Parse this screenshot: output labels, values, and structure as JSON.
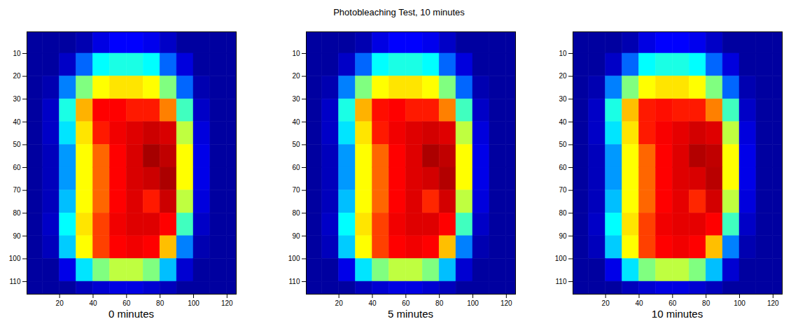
{
  "title": "Photobleaching Test, 10 minutes",
  "chart_data": [
    {
      "type": "heatmap",
      "xlabel": "0 minutes",
      "x": [
        5,
        15,
        25,
        35,
        45,
        55,
        65,
        75,
        85,
        95,
        105,
        115,
        125
      ],
      "y": [
        5,
        15,
        25,
        35,
        45,
        55,
        65,
        75,
        85,
        95,
        105,
        115
      ],
      "xlim": [
        0.5,
        125.5
      ],
      "ylim": [
        0.5,
        115.5
      ],
      "xticks": [
        20,
        40,
        60,
        80,
        100,
        120
      ],
      "yticks": [
        10,
        20,
        30,
        40,
        50,
        60,
        70,
        80,
        90,
        100,
        110
      ],
      "clim": [
        0,
        1
      ],
      "values": [
        [
          0.03,
          0.03,
          0.03,
          0.06,
          0.15,
          0.2,
          0.2,
          0.17,
          0.1,
          0.03,
          0.03,
          0.03,
          0.03
        ],
        [
          0.03,
          0.03,
          0.1,
          0.28,
          0.4,
          0.42,
          0.42,
          0.4,
          0.28,
          0.14,
          0.03,
          0.03,
          0.03
        ],
        [
          0.03,
          0.06,
          0.3,
          0.5,
          0.6,
          0.62,
          0.62,
          0.6,
          0.5,
          0.28,
          0.06,
          0.03,
          0.03
        ],
        [
          0.03,
          0.1,
          0.42,
          0.66,
          0.8,
          0.8,
          0.78,
          0.78,
          0.7,
          0.45,
          0.1,
          0.03,
          0.03
        ],
        [
          0.03,
          0.1,
          0.38,
          0.62,
          0.78,
          0.82,
          0.85,
          0.88,
          0.86,
          0.55,
          0.14,
          0.03,
          0.03
        ],
        [
          0.03,
          0.08,
          0.32,
          0.6,
          0.72,
          0.8,
          0.86,
          0.94,
          0.9,
          0.6,
          0.16,
          0.03,
          0.03
        ],
        [
          0.03,
          0.08,
          0.32,
          0.6,
          0.72,
          0.8,
          0.86,
          0.88,
          0.93,
          0.6,
          0.16,
          0.03,
          0.03
        ],
        [
          0.03,
          0.08,
          0.35,
          0.6,
          0.72,
          0.8,
          0.85,
          0.78,
          0.88,
          0.55,
          0.14,
          0.03,
          0.03
        ],
        [
          0.03,
          0.1,
          0.4,
          0.62,
          0.75,
          0.82,
          0.85,
          0.85,
          0.8,
          0.45,
          0.1,
          0.03,
          0.03
        ],
        [
          0.03,
          0.08,
          0.36,
          0.6,
          0.75,
          0.8,
          0.82,
          0.8,
          0.65,
          0.3,
          0.06,
          0.03,
          0.03
        ],
        [
          0.03,
          0.03,
          0.16,
          0.38,
          0.5,
          0.55,
          0.55,
          0.5,
          0.35,
          0.12,
          0.03,
          0.03,
          0.03
        ],
        [
          0.03,
          0.03,
          0.03,
          0.08,
          0.12,
          0.15,
          0.15,
          0.12,
          0.08,
          0.03,
          0.03,
          0.03,
          0.03
        ]
      ]
    },
    {
      "type": "heatmap",
      "xlabel": "5 minutes",
      "x": [
        5,
        15,
        25,
        35,
        45,
        55,
        65,
        75,
        85,
        95,
        105,
        115,
        125
      ],
      "y": [
        5,
        15,
        25,
        35,
        45,
        55,
        65,
        75,
        85,
        95,
        105,
        115
      ],
      "xlim": [
        0.5,
        125.5
      ],
      "ylim": [
        0.5,
        115.5
      ],
      "xticks": [
        20,
        40,
        60,
        80,
        100,
        120
      ],
      "yticks": [
        10,
        20,
        30,
        40,
        50,
        60,
        70,
        80,
        90,
        100,
        110
      ],
      "clim": [
        0,
        1
      ],
      "values": [
        [
          0.03,
          0.03,
          0.03,
          0.06,
          0.15,
          0.2,
          0.2,
          0.17,
          0.1,
          0.03,
          0.03,
          0.03,
          0.03
        ],
        [
          0.03,
          0.03,
          0.1,
          0.28,
          0.4,
          0.42,
          0.42,
          0.4,
          0.28,
          0.14,
          0.03,
          0.03,
          0.03
        ],
        [
          0.03,
          0.06,
          0.3,
          0.5,
          0.6,
          0.62,
          0.62,
          0.6,
          0.5,
          0.28,
          0.06,
          0.03,
          0.03
        ],
        [
          0.03,
          0.1,
          0.42,
          0.66,
          0.79,
          0.8,
          0.78,
          0.78,
          0.7,
          0.45,
          0.1,
          0.03,
          0.03
        ],
        [
          0.03,
          0.1,
          0.38,
          0.62,
          0.78,
          0.82,
          0.85,
          0.87,
          0.85,
          0.55,
          0.14,
          0.03,
          0.03
        ],
        [
          0.03,
          0.08,
          0.32,
          0.6,
          0.72,
          0.8,
          0.85,
          0.93,
          0.9,
          0.6,
          0.16,
          0.03,
          0.03
        ],
        [
          0.03,
          0.08,
          0.32,
          0.6,
          0.72,
          0.8,
          0.85,
          0.87,
          0.92,
          0.6,
          0.16,
          0.03,
          0.03
        ],
        [
          0.03,
          0.08,
          0.35,
          0.6,
          0.72,
          0.8,
          0.85,
          0.77,
          0.87,
          0.55,
          0.14,
          0.03,
          0.03
        ],
        [
          0.03,
          0.1,
          0.4,
          0.62,
          0.75,
          0.82,
          0.85,
          0.85,
          0.8,
          0.45,
          0.1,
          0.03,
          0.03
        ],
        [
          0.03,
          0.08,
          0.36,
          0.6,
          0.75,
          0.8,
          0.82,
          0.8,
          0.65,
          0.3,
          0.06,
          0.03,
          0.03
        ],
        [
          0.03,
          0.03,
          0.16,
          0.38,
          0.5,
          0.55,
          0.55,
          0.5,
          0.35,
          0.12,
          0.03,
          0.03,
          0.03
        ],
        [
          0.03,
          0.03,
          0.03,
          0.08,
          0.12,
          0.15,
          0.15,
          0.12,
          0.08,
          0.03,
          0.03,
          0.03,
          0.03
        ]
      ]
    },
    {
      "type": "heatmap",
      "xlabel": "10 minutes",
      "x": [
        5,
        15,
        25,
        35,
        45,
        55,
        65,
        75,
        85,
        95,
        105,
        115,
        125
      ],
      "y": [
        5,
        15,
        25,
        35,
        45,
        55,
        65,
        75,
        85,
        95,
        105,
        115
      ],
      "xlim": [
        0.5,
        125.5
      ],
      "ylim": [
        0.5,
        115.5
      ],
      "xticks": [
        20,
        40,
        60,
        80,
        100,
        120
      ],
      "yticks": [
        10,
        20,
        30,
        40,
        50,
        60,
        70,
        80,
        90,
        100,
        110
      ],
      "clim": [
        0,
        1
      ],
      "values": [
        [
          0.03,
          0.03,
          0.03,
          0.06,
          0.15,
          0.2,
          0.2,
          0.17,
          0.1,
          0.03,
          0.03,
          0.03,
          0.03
        ],
        [
          0.03,
          0.03,
          0.1,
          0.28,
          0.4,
          0.42,
          0.42,
          0.4,
          0.28,
          0.14,
          0.03,
          0.03,
          0.03
        ],
        [
          0.03,
          0.06,
          0.3,
          0.5,
          0.6,
          0.62,
          0.62,
          0.6,
          0.5,
          0.28,
          0.06,
          0.03,
          0.03
        ],
        [
          0.03,
          0.1,
          0.42,
          0.65,
          0.78,
          0.79,
          0.78,
          0.78,
          0.7,
          0.45,
          0.1,
          0.03,
          0.03
        ],
        [
          0.03,
          0.1,
          0.38,
          0.62,
          0.78,
          0.81,
          0.84,
          0.87,
          0.85,
          0.55,
          0.14,
          0.03,
          0.03
        ],
        [
          0.03,
          0.08,
          0.32,
          0.6,
          0.72,
          0.8,
          0.85,
          0.92,
          0.9,
          0.6,
          0.16,
          0.03,
          0.03
        ],
        [
          0.03,
          0.08,
          0.32,
          0.6,
          0.72,
          0.8,
          0.85,
          0.86,
          0.91,
          0.6,
          0.16,
          0.03,
          0.03
        ],
        [
          0.03,
          0.08,
          0.35,
          0.6,
          0.72,
          0.8,
          0.84,
          0.77,
          0.87,
          0.55,
          0.14,
          0.03,
          0.03
        ],
        [
          0.03,
          0.1,
          0.4,
          0.62,
          0.75,
          0.82,
          0.84,
          0.84,
          0.8,
          0.45,
          0.1,
          0.03,
          0.03
        ],
        [
          0.03,
          0.08,
          0.36,
          0.6,
          0.75,
          0.8,
          0.82,
          0.8,
          0.65,
          0.3,
          0.06,
          0.03,
          0.03
        ],
        [
          0.03,
          0.03,
          0.16,
          0.38,
          0.5,
          0.55,
          0.55,
          0.5,
          0.35,
          0.12,
          0.03,
          0.03,
          0.03
        ],
        [
          0.03,
          0.03,
          0.03,
          0.08,
          0.12,
          0.15,
          0.15,
          0.12,
          0.08,
          0.03,
          0.03,
          0.03,
          0.03
        ]
      ]
    }
  ]
}
